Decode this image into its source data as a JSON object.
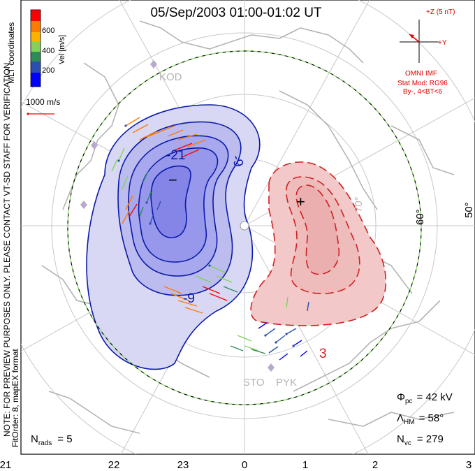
{
  "title": "05/Sep/2003 01:00-01:02 UT",
  "colorbar": {
    "label": "Vel [m/s]",
    "ticks": [
      "600",
      "400",
      "200"
    ],
    "colors": [
      "#0000ff",
      "#2a4fb0",
      "#2e8b57",
      "#7fd35a",
      "#ffb000",
      "#ff7a00",
      "#ff0000"
    ]
  },
  "coord_label": "MLT coordinates",
  "velocity_ref": "1000 m/s",
  "side_note": "NOTE: FOR PREVIEW PURPOSES ONLY. PLEASE CONTACT VT-SD STAFF FOR VERIFICATION.",
  "fit_order": "FitOrder: 8,  mapEX format",
  "imf": {
    "z_label": "+Z (5 nT)",
    "y_label": "+Y",
    "source": "OMNI IMF",
    "stat_mod": "Stat Mod: RG96",
    "condition": "By-, 4<BT<6"
  },
  "latitude_labels": [
    "60°",
    "50°",
    "70°"
  ],
  "station_labels": [
    "KOD",
    "STO",
    "PYK"
  ],
  "contour_labels": {
    "negative": [
      "-21",
      "-9",
      "-9"
    ],
    "positive": [
      "3"
    ],
    "neg_marker": "−",
    "pos_marker": "+"
  },
  "stats": {
    "phi_label": "Φ",
    "phi_sub": "pc",
    "phi_value": "= 42 kV",
    "lambda_label": "Λ",
    "lambda_sub": "HM",
    "lambda_value": "= 58°",
    "nvc_label": "N",
    "nvc_sub": "vc",
    "nvc_value": "= 279",
    "nrads_label": "N",
    "nrads_sub": "rads",
    "nrads_value": "= 5"
  },
  "mlt_axis": [
    "21",
    "22",
    "23",
    "0",
    "1",
    "2",
    "3"
  ],
  "colors": {
    "negative_fill": "#8f8ff0",
    "negative_line": "#0a1aa8",
    "positive_fill": "#f3c8c8",
    "positive_line": "#d02020",
    "boundary": "#2aa02a",
    "grid": "#c8c8c8",
    "coast": "#b4b4b4"
  }
}
